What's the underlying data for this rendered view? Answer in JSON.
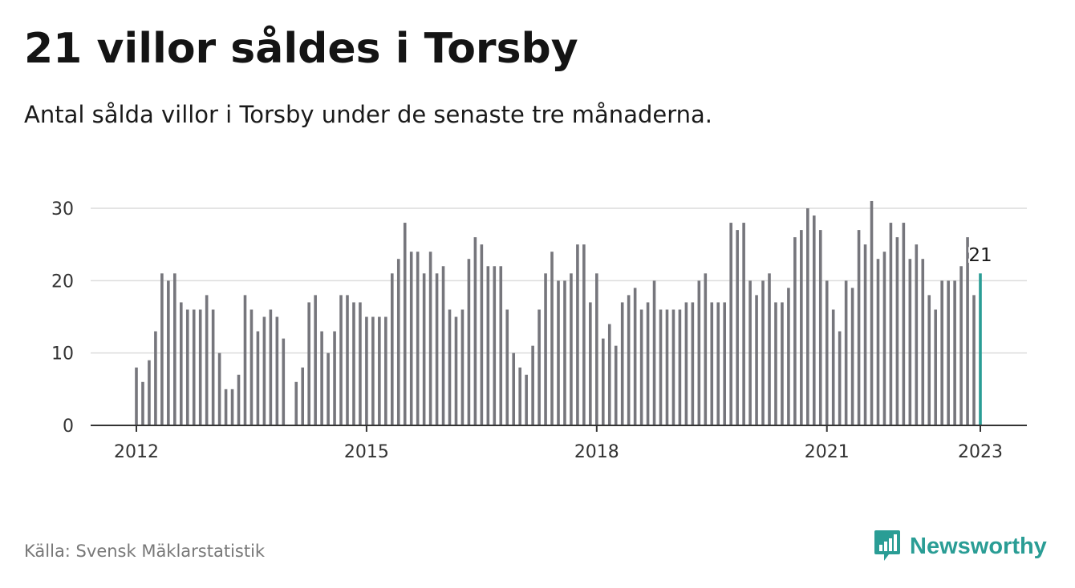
{
  "header": {
    "title": "21 villor såldes i Torsby",
    "subtitle": "Antal sålda villor i Torsby under de senaste tre månaderna."
  },
  "footer": {
    "source": "Källa: Svensk Mäklarstatistik",
    "brand": "Newsworthy"
  },
  "colors": {
    "bar": "#76767c",
    "highlight": "#2a9d95",
    "grid": "#dcdcdc",
    "axis": "#333333",
    "brand": "#2a9d95"
  },
  "chart_data": {
    "type": "bar",
    "title": "21 villor såldes i Torsby",
    "xlabel": "",
    "ylabel": "",
    "ylim": [
      0,
      30
    ],
    "yticks": [
      0,
      10,
      20,
      30
    ],
    "x_start": "2012-01",
    "x_end": "2023-01",
    "xticks": [
      "2012",
      "2015",
      "2018",
      "2021",
      "2023"
    ],
    "grid": true,
    "highlight_label": "21",
    "series": [
      {
        "values": [
          8,
          6,
          9,
          13,
          21,
          20,
          21,
          17,
          16,
          16,
          16,
          18,
          16,
          10,
          5,
          5,
          7,
          18,
          16,
          13,
          15,
          16,
          15,
          12,
          null,
          6,
          8,
          17,
          18,
          13,
          10,
          13,
          18,
          18,
          17,
          17,
          15,
          15,
          15,
          15,
          21,
          23,
          28,
          24,
          24,
          21,
          24,
          21,
          22,
          16,
          15,
          16,
          23,
          26,
          25,
          22,
          22,
          22,
          16,
          10,
          8,
          7,
          11,
          16,
          21,
          24,
          20,
          20,
          21,
          25,
          25,
          17,
          21,
          12,
          14,
          11,
          17,
          18,
          19,
          16,
          17,
          20,
          16,
          16,
          16,
          16,
          17,
          17,
          20,
          21,
          17,
          17,
          17,
          28,
          27,
          28,
          20,
          18,
          20,
          21,
          17,
          17,
          19,
          26,
          27,
          30,
          29,
          27,
          20,
          16,
          13,
          20,
          19,
          27,
          25,
          31,
          23,
          24,
          28,
          26,
          28,
          23,
          25,
          23,
          18,
          16,
          20,
          20,
          20,
          22,
          26,
          18,
          21
        ]
      }
    ]
  }
}
